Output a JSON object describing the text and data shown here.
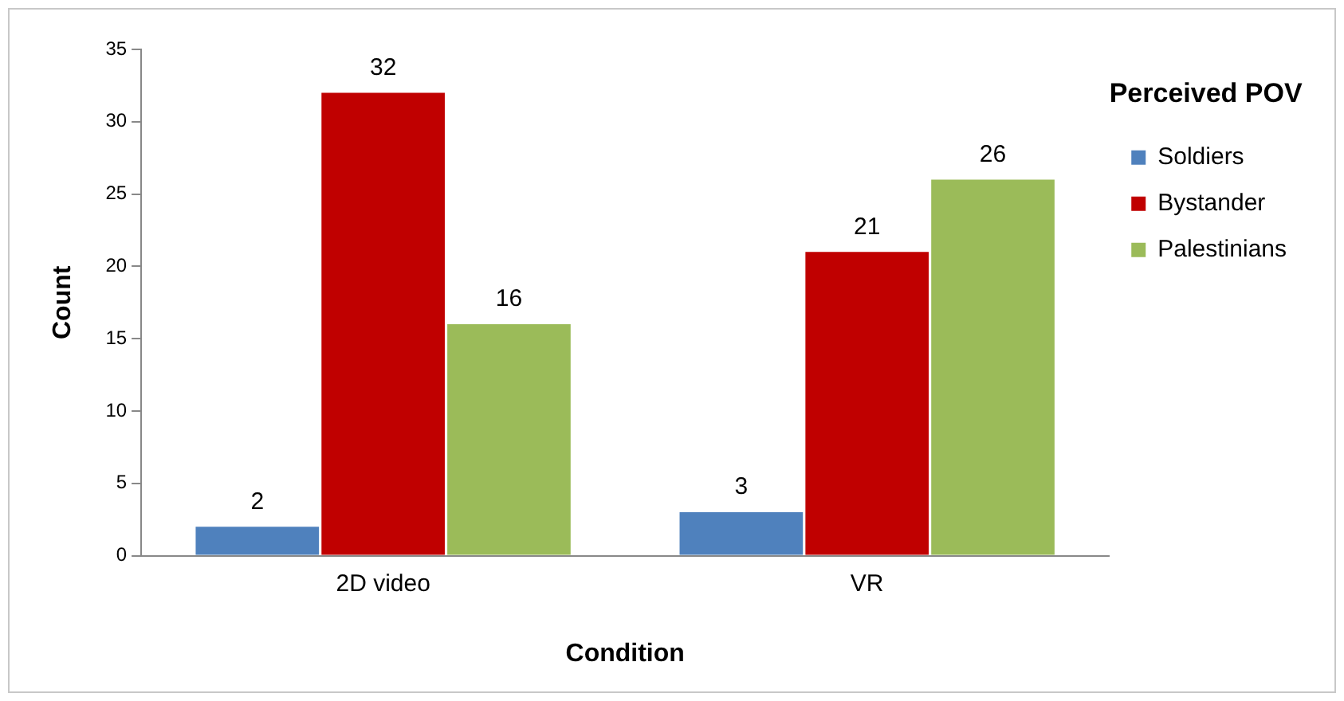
{
  "chart_data": {
    "type": "bar",
    "xlabel": "Condition",
    "ylabel": "Count",
    "legend_title": "Perceived POV",
    "legend": "right",
    "grid": false,
    "data_labels": true,
    "categories": [
      "2D video",
      "VR"
    ],
    "ylim": [
      0,
      35
    ],
    "yticks": [
      0,
      5,
      10,
      15,
      20,
      25,
      30,
      35
    ],
    "series": [
      {
        "name": "Soldiers",
        "color": "#4f81bd",
        "values": [
          2,
          3
        ]
      },
      {
        "name": "Bystander",
        "color": "#c00000",
        "values": [
          32,
          21
        ]
      },
      {
        "name": "Palestinians",
        "color": "#9bbb59",
        "values": [
          16,
          26
        ]
      }
    ]
  }
}
